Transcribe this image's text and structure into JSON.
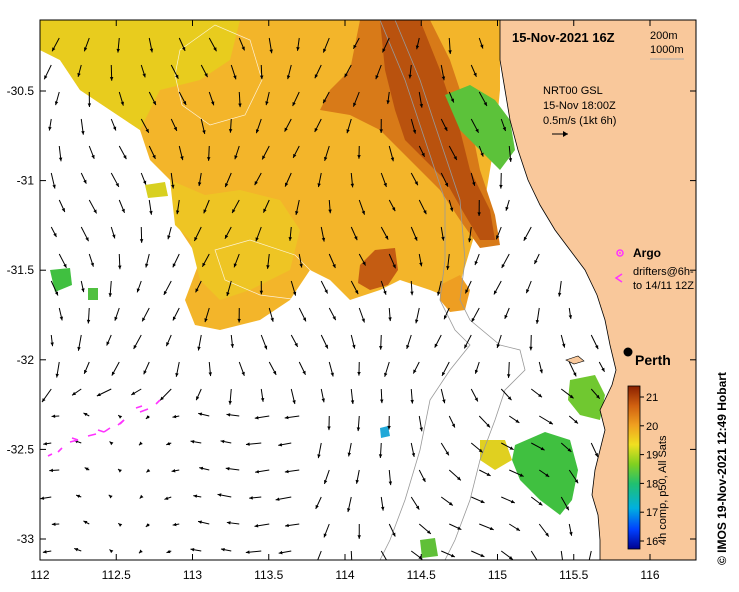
{
  "map": {
    "title": "15-Nov-2021 16Z",
    "contour_legend": [
      "200m",
      "1000m"
    ],
    "current_legend": {
      "line1": "NRT00 GSL",
      "line2": "15-Nov 18:00Z",
      "line3": "0.5m/s (1kt 6h)"
    },
    "argo_label": "Argo",
    "drifters_label_1": "drifters@6h-",
    "drifters_label_2": "to 14/11 12Z",
    "city": "Perth",
    "credit": "© IMOS 19-Nov-2021 12:49 Hobart",
    "colorbar_label": "4h comp, p50, All Sats",
    "colorbar_ticks": [
      "16",
      "17",
      "18",
      "19",
      "20",
      "21"
    ],
    "lon_ticks": [
      "112",
      "112.5",
      "113",
      "113.5",
      "114",
      "114.5",
      "115",
      "115.5",
      "116"
    ],
    "lat_ticks": [
      "-30.5",
      "-31",
      "-31.5",
      "-32",
      "-32.5",
      "-33"
    ],
    "colors": {
      "land": "#f9c89b",
      "warm": "#c85a10",
      "mid": "#f0a020",
      "yellow": "#f2d21e",
      "green": "#40c040",
      "arrow": "#000000",
      "drifter": "#ff33ff"
    }
  }
}
